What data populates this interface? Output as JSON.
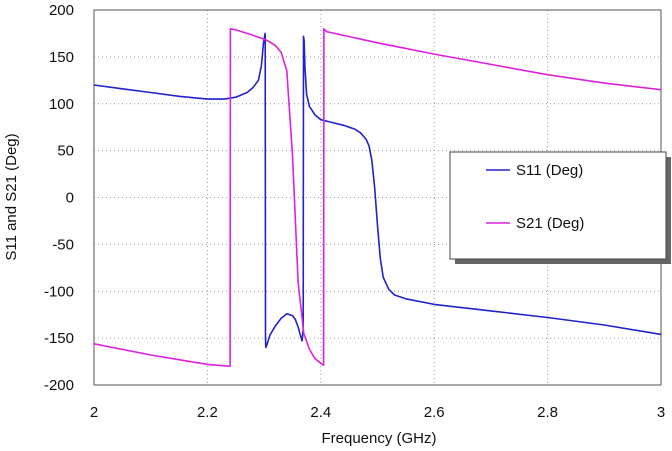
{
  "chart_data": {
    "type": "line",
    "title": "",
    "xlabel": "Frequency (GHz)",
    "ylabel": "S11 and S21 (Deg)",
    "xlim": [
      2,
      3
    ],
    "ylim": [
      -200,
      200
    ],
    "x_ticks": [
      2,
      2.2,
      2.4,
      2.6,
      2.8,
      3
    ],
    "x_tick_labels": [
      "2",
      "2.2",
      "2.4",
      "2.6",
      "2.8",
      "3"
    ],
    "y_ticks": [
      200,
      150,
      100,
      50,
      0,
      -50,
      -100,
      -150,
      -200
    ],
    "y_tick_labels": [
      "200",
      "150",
      "100",
      "50",
      "0",
      "-50",
      "-100",
      "-150",
      "-200"
    ],
    "grid": true,
    "legend_position": "center-right",
    "series": [
      {
        "name": "S11 (Deg)",
        "color": "#2222cc",
        "x": [
          2.0,
          2.05,
          2.1,
          2.15,
          2.2,
          2.23,
          2.25,
          2.27,
          2.28,
          2.29,
          2.295,
          2.299,
          2.302,
          2.3025,
          2.303,
          2.305,
          2.31,
          2.32,
          2.33,
          2.34,
          2.35,
          2.355,
          2.36,
          2.364,
          2.367,
          2.369,
          2.3695,
          2.3705,
          2.372,
          2.375,
          2.38,
          2.39,
          2.4,
          2.42,
          2.44,
          2.46,
          2.47,
          2.48,
          2.485,
          2.49,
          2.495,
          2.5,
          2.505,
          2.51,
          2.52,
          2.53,
          2.55,
          2.6,
          2.7,
          2.8,
          2.9,
          3.0
        ],
        "values": [
          120,
          116,
          112,
          108,
          105,
          105,
          107,
          112,
          117,
          125,
          140,
          165,
          175,
          -150,
          -160,
          -157,
          -147,
          -137,
          -129,
          -124,
          -126,
          -130,
          -138,
          -147,
          -153,
          -140,
          172,
          168,
          140,
          110,
          97,
          88,
          83,
          80,
          77,
          73,
          69,
          62,
          55,
          40,
          10,
          -30,
          -65,
          -85,
          -98,
          -104,
          -108,
          -114,
          -121,
          -128,
          -136,
          -146
        ]
      },
      {
        "name": "S21 (Deg)",
        "color": "#dd22dd",
        "x": [
          2.0,
          2.05,
          2.1,
          2.15,
          2.2,
          2.24,
          2.2405,
          2.25,
          2.26,
          2.27,
          2.28,
          2.29,
          2.3,
          2.31,
          2.32,
          2.33,
          2.34,
          2.35,
          2.36,
          2.37,
          2.38,
          2.39,
          2.4,
          2.405,
          2.4055,
          2.41,
          2.5,
          2.6,
          2.7,
          2.8,
          2.9,
          3.0
        ],
        "values": [
          -156,
          -162,
          -168,
          -173,
          -178,
          -180,
          180,
          179,
          177,
          175,
          173,
          171,
          169,
          166,
          162,
          155,
          135,
          45,
          -90,
          -145,
          -162,
          -172,
          -177,
          -179,
          180,
          177,
          165,
          153,
          142,
          131,
          122,
          115
        ]
      }
    ]
  }
}
